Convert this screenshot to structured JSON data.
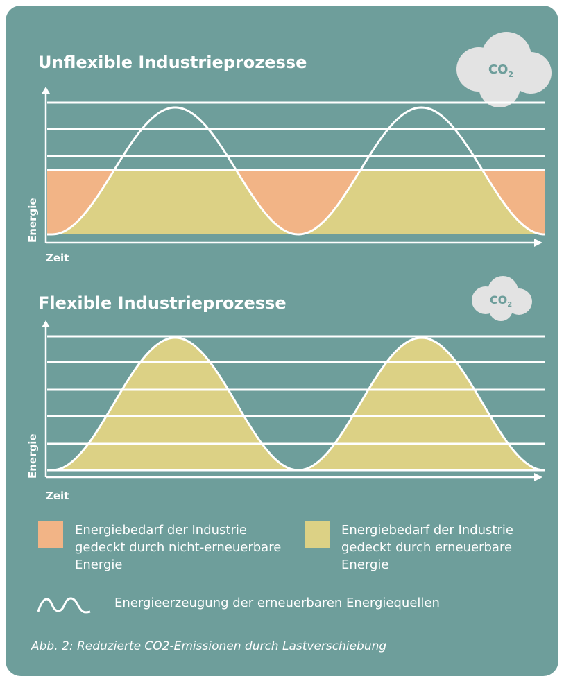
{
  "sections": [
    {
      "title": "Unflexible Industrieprozesse",
      "cloud_label": "CO",
      "cloud_subscript": "2",
      "y_label": "Energie",
      "x_label": "Zeit"
    },
    {
      "title": "Flexible Industrieprozesse",
      "cloud_label": "CO",
      "cloud_subscript": "2",
      "y_label": "Energie",
      "x_label": "Zeit"
    }
  ],
  "legend": [
    "Energiebedarf der Industrie gedeckt durch nicht-erneuerbare Energie",
    "Energiebedarf der Industrie gedeckt durch erneuerbare Energie"
  ],
  "curve_legend": "Energieerzeugung der erneuerbaren Energiequellen",
  "caption": "Abb. 2: Reduzierte CO2-Emissionen durch Lastverschiebung"
}
